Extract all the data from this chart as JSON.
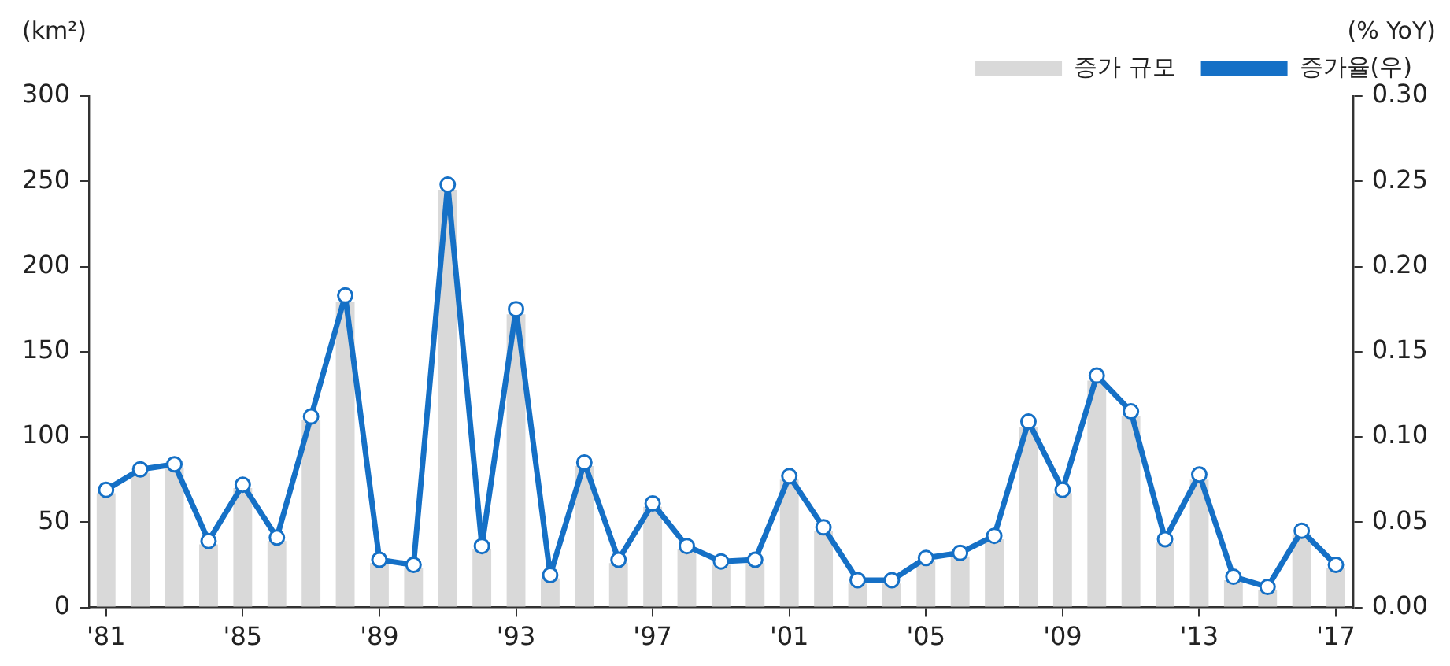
{
  "chart_data": {
    "type": "bar",
    "ylabel": "(km²)",
    "y2label": "(% YoY)",
    "categories": [
      "'81",
      null,
      null,
      null,
      "'85",
      null,
      null,
      null,
      "'89",
      null,
      null,
      null,
      "'93",
      null,
      null,
      null,
      "'97",
      null,
      null,
      null,
      "'01",
      null,
      null,
      null,
      "'05",
      null,
      null,
      null,
      "'09",
      null,
      null,
      null,
      "'13",
      null,
      null,
      null,
      "'17"
    ],
    "series": [
      {
        "name": "증가 규모",
        "color": "#d9d9d9",
        "values": [
          67,
          79,
          82,
          37,
          70,
          39,
          110,
          179,
          26,
          23,
          245,
          34,
          172,
          17,
          83,
          26,
          59,
          34,
          25,
          26,
          75,
          45,
          14,
          14,
          27,
          30,
          40,
          106,
          67,
          133,
          112,
          38,
          75,
          16,
          10,
          43,
          23
        ]
      },
      {
        "name": "증가율(우)",
        "type": "line",
        "axis": "y2",
        "color": "#1570c6",
        "values": [
          0.069,
          0.081,
          0.084,
          0.039,
          0.072,
          0.041,
          0.112,
          0.183,
          0.028,
          0.025,
          0.248,
          0.036,
          0.175,
          0.019,
          0.085,
          0.028,
          0.061,
          0.036,
          0.027,
          0.028,
          0.077,
          0.047,
          0.016,
          0.016,
          0.029,
          0.032,
          0.042,
          0.109,
          0.069,
          0.136,
          0.115,
          0.04,
          0.078,
          0.018,
          0.012,
          0.045,
          0.025
        ]
      }
    ],
    "ylim": [
      0,
      300
    ],
    "yticks": [
      0,
      50,
      100,
      150,
      200,
      250,
      300
    ],
    "y2lim": [
      0,
      0.3
    ],
    "y2ticks": [
      {
        "value": 0,
        "label": "0.00"
      },
      {
        "value": 0.05,
        "label": "0.05"
      },
      {
        "value": 0.1,
        "label": "0.10"
      },
      {
        "value": 0.15,
        "label": "0.15"
      },
      {
        "value": 0.2,
        "label": "0.20"
      },
      {
        "value": 0.25,
        "label": "0.25"
      },
      {
        "value": 0.3,
        "label": "0.30"
      }
    ],
    "grid": false,
    "legend": "top right",
    "marker": "circle",
    "line_style": "solid"
  }
}
